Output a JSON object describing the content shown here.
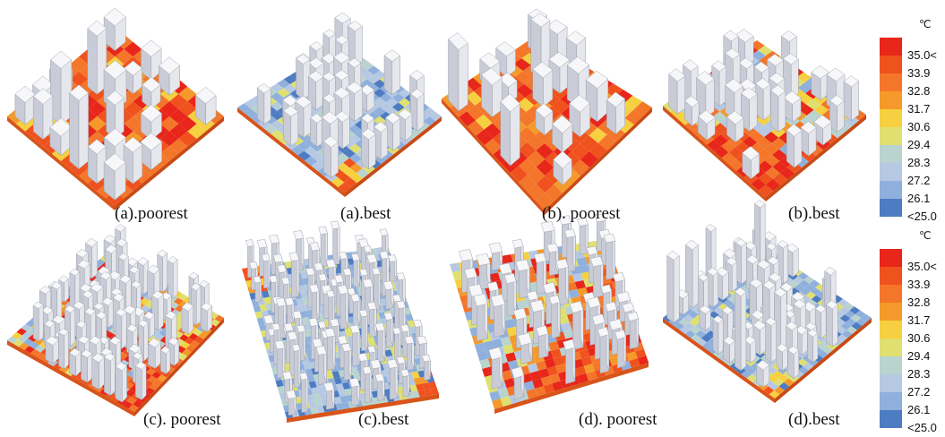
{
  "panels": [
    {
      "id": "a-poorest",
      "caption": "(a).poorest",
      "base": "hot",
      "rows": 6,
      "density": 0.55,
      "tall": 1
    },
    {
      "id": "a-best",
      "caption": "(a).best",
      "base": "cool",
      "rows": 8,
      "density": 0.6,
      "tall": 0
    },
    {
      "id": "b-poorest",
      "caption": "(b). poorest",
      "base": "hot",
      "rows": 6,
      "density": 0.5,
      "tall": 1
    },
    {
      "id": "b-best",
      "caption": "(b).best",
      "base": "mixed",
      "rows": 7,
      "density": 0.55,
      "tall": 0
    },
    {
      "id": "c-poorest",
      "caption": "(c). poorest",
      "base": "mixed",
      "rows": 11,
      "density": 0.65,
      "tall": 0
    },
    {
      "id": "c-best",
      "caption": "(c).best",
      "base": "cool",
      "rows": 12,
      "density": 0.6,
      "tall": 0
    },
    {
      "id": "d-poorest",
      "caption": "(d). poorest",
      "base": "mixed",
      "rows": 9,
      "density": 0.6,
      "tall": 0
    },
    {
      "id": "d-best",
      "caption": "(d).best",
      "base": "cool",
      "rows": 10,
      "density": 0.6,
      "tall": 1
    }
  ],
  "legend": {
    "unit": "℃",
    "labels": [
      "35.0<",
      "33.9",
      "32.8",
      "31.7",
      "30.6",
      "29.4",
      "28.3",
      "27.2",
      "26.1",
      "<25.0"
    ],
    "colors": [
      "#e8261a",
      "#f0521e",
      "#f4762a",
      "#f59a2a",
      "#f6d040",
      "#dfe070",
      "#b9d3cf",
      "#b6c8e2",
      "#8fb0dc",
      "#4d7cc2"
    ]
  }
}
